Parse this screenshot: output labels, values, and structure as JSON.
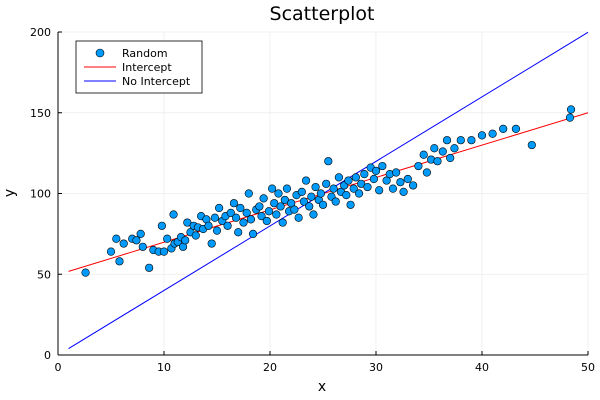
{
  "chart_data": {
    "type": "scatter",
    "title": "Scatterplot",
    "xlabel": "x",
    "ylabel": "y",
    "xlim": [
      0,
      50
    ],
    "ylim": [
      0,
      200
    ],
    "xticks": [
      0,
      10,
      20,
      30,
      40,
      50
    ],
    "yticks": [
      0,
      50,
      100,
      150,
      200
    ],
    "grid": true,
    "legend_position": "top-left",
    "series": [
      {
        "name": "Random",
        "kind": "scatter",
        "color": "#009AFA",
        "points": [
          [
            2.6,
            51
          ],
          [
            5.0,
            64
          ],
          [
            5.5,
            72
          ],
          [
            5.8,
            58
          ],
          [
            6.2,
            69
          ],
          [
            7.0,
            72
          ],
          [
            7.4,
            71
          ],
          [
            7.8,
            75
          ],
          [
            8.0,
            67
          ],
          [
            8.6,
            54
          ],
          [
            9.0,
            65
          ],
          [
            9.5,
            64
          ],
          [
            9.8,
            80
          ],
          [
            10.0,
            64
          ],
          [
            10.3,
            72
          ],
          [
            10.7,
            66
          ],
          [
            10.9,
            87
          ],
          [
            11.0,
            69
          ],
          [
            11.3,
            70
          ],
          [
            11.6,
            73
          ],
          [
            11.8,
            67
          ],
          [
            12.0,
            71
          ],
          [
            12.2,
            82
          ],
          [
            12.5,
            76
          ],
          [
            12.8,
            80
          ],
          [
            13.0,
            74
          ],
          [
            13.2,
            79
          ],
          [
            13.5,
            86
          ],
          [
            13.7,
            78
          ],
          [
            14.0,
            84
          ],
          [
            14.2,
            80
          ],
          [
            14.5,
            69
          ],
          [
            14.8,
            85
          ],
          [
            15.0,
            77
          ],
          [
            15.2,
            91
          ],
          [
            15.5,
            83
          ],
          [
            15.8,
            86
          ],
          [
            16.0,
            80
          ],
          [
            16.3,
            88
          ],
          [
            16.6,
            94
          ],
          [
            16.8,
            85
          ],
          [
            17.0,
            76
          ],
          [
            17.2,
            91
          ],
          [
            17.5,
            82
          ],
          [
            17.8,
            88
          ],
          [
            18.0,
            100
          ],
          [
            18.2,
            84
          ],
          [
            18.4,
            75
          ],
          [
            18.7,
            90
          ],
          [
            19.0,
            92
          ],
          [
            19.2,
            86
          ],
          [
            19.4,
            97
          ],
          [
            19.7,
            83
          ],
          [
            19.9,
            89
          ],
          [
            20.2,
            103
          ],
          [
            20.4,
            94
          ],
          [
            20.6,
            87
          ],
          [
            20.8,
            100
          ],
          [
            21.0,
            92
          ],
          [
            21.2,
            82
          ],
          [
            21.4,
            96
          ],
          [
            21.6,
            103
          ],
          [
            21.8,
            89
          ],
          [
            22.0,
            94
          ],
          [
            22.3,
            90
          ],
          [
            22.5,
            99
          ],
          [
            22.7,
            85
          ],
          [
            23.0,
            101
          ],
          [
            23.2,
            95
          ],
          [
            23.4,
            108
          ],
          [
            23.7,
            92
          ],
          [
            23.9,
            98
          ],
          [
            24.1,
            87
          ],
          [
            24.3,
            104
          ],
          [
            24.6,
            96
          ],
          [
            24.8,
            100
          ],
          [
            25.0,
            93
          ],
          [
            25.3,
            106
          ],
          [
            25.5,
            120
          ],
          [
            25.8,
            98
          ],
          [
            26.0,
            103
          ],
          [
            26.2,
            95
          ],
          [
            26.5,
            110
          ],
          [
            26.7,
            101
          ],
          [
            27.0,
            105
          ],
          [
            27.2,
            99
          ],
          [
            27.4,
            108
          ],
          [
            27.6,
            93
          ],
          [
            27.9,
            103
          ],
          [
            28.1,
            110
          ],
          [
            28.4,
            100
          ],
          [
            28.6,
            106
          ],
          [
            28.9,
            112
          ],
          [
            29.2,
            104
          ],
          [
            29.5,
            116
          ],
          [
            29.8,
            109
          ],
          [
            30.0,
            114
          ],
          [
            30.3,
            102
          ],
          [
            30.6,
            117
          ],
          [
            31.0,
            108
          ],
          [
            31.3,
            112
          ],
          [
            31.6,
            103
          ],
          [
            31.9,
            113
          ],
          [
            32.3,
            107
          ],
          [
            32.6,
            101
          ],
          [
            33.0,
            109
          ],
          [
            33.5,
            105
          ],
          [
            34.0,
            117
          ],
          [
            34.5,
            124
          ],
          [
            34.8,
            113
          ],
          [
            35.2,
            121
          ],
          [
            35.5,
            128
          ],
          [
            35.8,
            120
          ],
          [
            36.3,
            126
          ],
          [
            36.7,
            133
          ],
          [
            37.0,
            122
          ],
          [
            37.4,
            128
          ],
          [
            38.0,
            133
          ],
          [
            39.0,
            133
          ],
          [
            40.0,
            136
          ],
          [
            41.0,
            137
          ],
          [
            42.0,
            140
          ],
          [
            43.2,
            140
          ],
          [
            44.7,
            130
          ],
          [
            48.3,
            147
          ],
          [
            48.4,
            152
          ]
        ]
      },
      {
        "name": "Intercept",
        "kind": "line",
        "color": "#FF0000",
        "points": [
          [
            1.0,
            51.8
          ],
          [
            50.0,
            150.0
          ]
        ]
      },
      {
        "name": "No Intercept",
        "kind": "line",
        "color": "#0000FF",
        "points": [
          [
            1.0,
            4.0
          ],
          [
            50.0,
            199.8
          ]
        ]
      }
    ]
  }
}
